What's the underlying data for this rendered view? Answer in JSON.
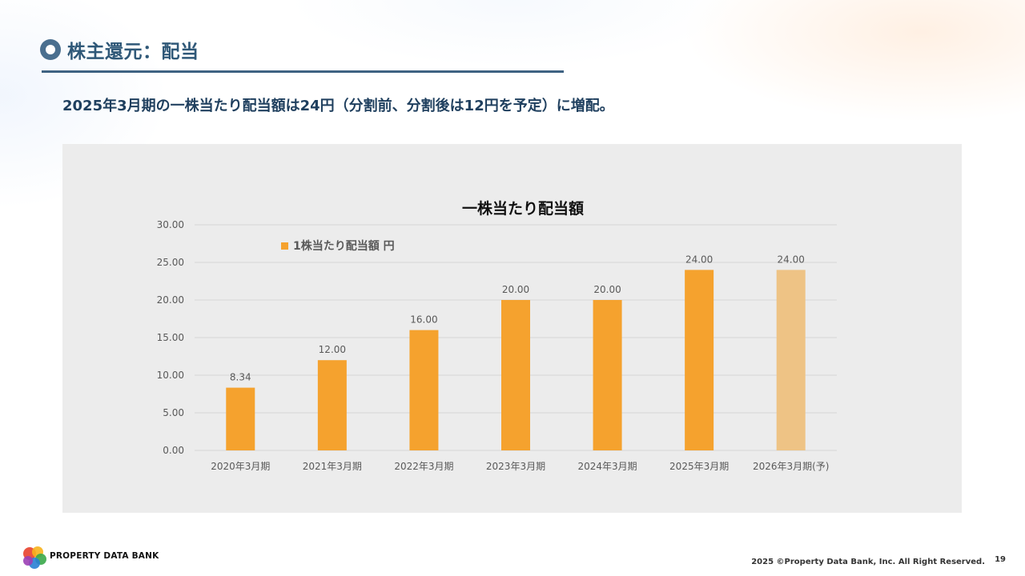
{
  "header": {
    "title": "株主還元：配当",
    "subtitle": "2025年3月期の一株当たり配当額は24円（分割前、分割後は12円を予定）に増配。"
  },
  "chart_data": {
    "type": "bar",
    "title": "一株当たり配当額",
    "categories": [
      "2020年3月期",
      "2021年3月期",
      "2022年3月期",
      "2023年3月期",
      "2024年3月期",
      "2025年3月期",
      "2026年3月期(予)"
    ],
    "series": [
      {
        "name": "1株当たり配当額 円",
        "values": [
          8.34,
          12.0,
          16.0,
          20.0,
          20.0,
          24.0,
          24.0
        ],
        "labels": [
          "8.34",
          "12.00",
          "16.00",
          "20.00",
          "20.00",
          "24.00",
          "24.00"
        ],
        "color": "#f5a22e",
        "forecast_color": "#eec385"
      }
    ],
    "y_ticks": [
      "0.00",
      "5.00",
      "10.00",
      "15.00",
      "20.00",
      "25.00",
      "30.00"
    ],
    "ylim": [
      0,
      30
    ],
    "grid": true,
    "legend_position": "top-left"
  },
  "footer": {
    "brand": "PROPERTY DATA BANK",
    "copyright": "2025 ©Property Data Bank, Inc. All Right Reserved.",
    "page_number": "19"
  }
}
